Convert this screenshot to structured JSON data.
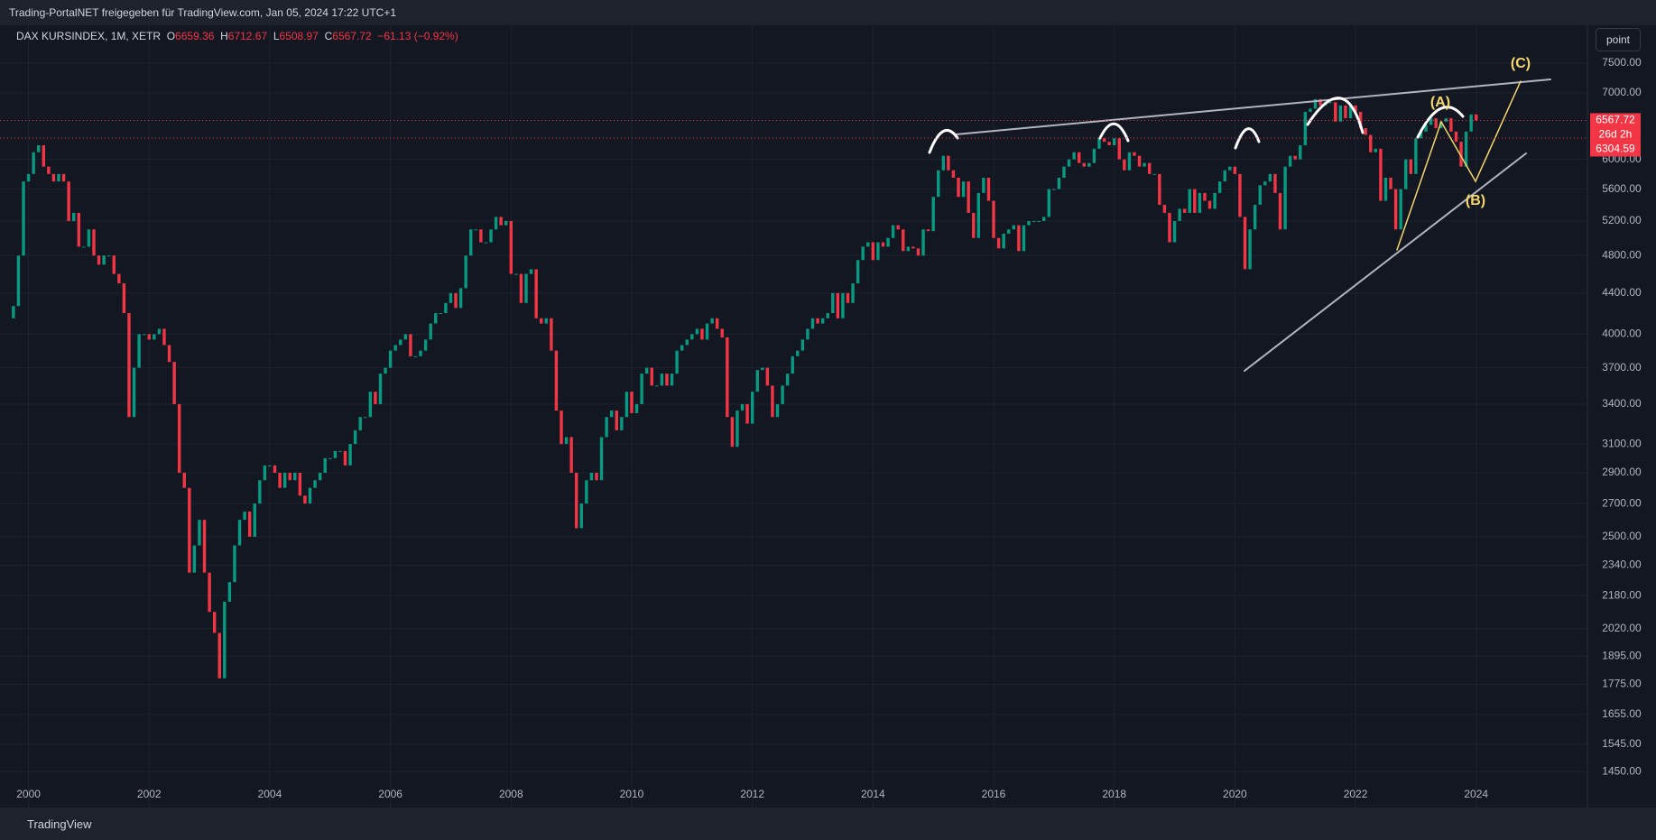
{
  "header": {
    "text": "Trading-PortalNET freigegeben für TradingView.com, Jan 05, 2024 17:22 UTC+1"
  },
  "toolbar": {
    "button": "point"
  },
  "footer": {
    "logo": "TradingView"
  },
  "legend": {
    "symbol": "DAX KURSINDEX, 1M, XETR",
    "open_label": "O",
    "open": "6659.36",
    "high_label": "H",
    "high": "6712.67",
    "low_label": "L",
    "low": "6508.97",
    "close_label": "C",
    "close": "6567.72",
    "change": "−61.13 (−0.92%)"
  },
  "chart_data": {
    "type": "candlestick",
    "log_scale": true,
    "grid": true,
    "colors": {
      "up": "#089981",
      "down": "#f23645",
      "annotation": "#f5d76e"
    },
    "last_price": 6567.72,
    "countdown": "26d 2h",
    "prev_level": 6304.59,
    "annotations": [
      "(A)",
      "(B)",
      "(C)"
    ],
    "ylim": [
      1331,
      8190
    ],
    "yticks": [
      {
        "value": 7500,
        "label": "7500.00"
      },
      {
        "value": 7000,
        "label": "7000.00"
      },
      {
        "value": 6000,
        "label": "6000.00"
      },
      {
        "value": 5600,
        "label": "5600.00"
      },
      {
        "value": 5200,
        "label": "5200.00"
      },
      {
        "value": 4800,
        "label": "4800.00"
      },
      {
        "value": 4400,
        "label": "4400.00"
      },
      {
        "value": 4000,
        "label": "4000.00"
      },
      {
        "value": 3700,
        "label": "3700.00"
      },
      {
        "value": 3400,
        "label": "3400.00"
      },
      {
        "value": 3100,
        "label": "3100.00"
      },
      {
        "value": 2900,
        "label": "2900.00"
      },
      {
        "value": 2700,
        "label": "2700.00"
      },
      {
        "value": 2500,
        "label": "2500.00"
      },
      {
        "value": 2340,
        "label": "2340.00"
      },
      {
        "value": 2180,
        "label": "2180.00"
      },
      {
        "value": 2020,
        "label": "2020.00"
      },
      {
        "value": 1895,
        "label": "1895.00"
      },
      {
        "value": 1775,
        "label": "1775.00"
      },
      {
        "value": 1655,
        "label": "1655.00"
      },
      {
        "value": 1545,
        "label": "1545.00"
      },
      {
        "value": 1450,
        "label": "1450.00"
      }
    ],
    "categories": [
      null,
      null,
      null,
      null,
      "2000",
      null,
      null,
      null,
      null,
      null,
      null,
      null,
      null,
      null,
      null,
      null,
      null,
      null,
      null,
      null,
      null,
      null,
      null,
      null,
      null,
      null,
      null,
      null,
      "2002",
      null,
      null,
      null,
      null,
      null,
      null,
      null,
      null,
      null,
      null,
      null,
      null,
      null,
      null,
      null,
      null,
      null,
      null,
      null,
      null,
      null,
      null,
      null,
      "2004",
      null,
      null,
      null,
      null,
      null,
      null,
      null,
      null,
      null,
      null,
      null,
      null,
      null,
      null,
      null,
      null,
      null,
      null,
      null,
      null,
      null,
      null,
      null,
      "2006",
      null,
      null,
      null,
      null,
      null,
      null,
      null,
      null,
      null,
      null,
      null,
      null,
      null,
      null,
      null,
      null,
      null,
      null,
      null,
      null,
      null,
      null,
      null,
      "2008",
      null,
      null,
      null,
      null,
      null,
      null,
      null,
      null,
      null,
      null,
      null,
      null,
      null,
      null,
      null,
      null,
      null,
      null,
      null,
      null,
      null,
      null,
      null,
      "2010",
      null,
      null,
      null,
      null,
      null,
      null,
      null,
      null,
      null,
      null,
      null,
      null,
      null,
      null,
      null,
      null,
      null,
      null,
      null,
      null,
      null,
      null,
      null,
      "2012",
      null,
      null,
      null,
      null,
      null,
      null,
      null,
      null,
      null,
      null,
      null,
      null,
      null,
      null,
      null,
      null,
      null,
      null,
      null,
      null,
      null,
      null,
      null,
      "2014",
      null,
      null,
      null,
      null,
      null,
      null,
      null,
      null,
      null,
      null,
      null,
      null,
      null,
      null,
      null,
      null,
      null,
      null,
      null,
      null,
      null,
      null,
      null,
      "2016",
      null,
      null,
      null,
      null,
      null,
      null,
      null,
      null,
      null,
      null,
      null,
      null,
      null,
      null,
      null,
      null,
      null,
      null,
      null,
      null,
      null,
      null,
      null,
      "2018",
      null,
      null,
      null,
      null,
      null,
      null,
      null,
      null,
      null,
      null,
      null,
      null,
      null,
      null,
      null,
      null,
      null,
      null,
      null,
      null,
      null,
      null,
      null,
      "2020",
      null,
      null,
      null,
      null,
      null,
      null,
      null,
      null,
      null,
      null,
      null,
      null,
      null,
      null,
      null,
      null,
      null,
      null,
      null,
      null,
      null,
      null,
      null,
      "2022",
      null,
      null,
      null,
      null,
      null,
      null,
      null,
      null,
      null,
      null,
      null,
      null,
      null,
      null,
      null,
      null,
      null,
      null,
      null,
      null,
      null,
      null,
      null,
      "2024"
    ],
    "values": [
      4150,
      4270,
      4800,
      5700,
      5800,
      6100,
      6200,
      5900,
      5800,
      5700,
      5800,
      5700,
      5200,
      5300,
      4900,
      4900,
      5100,
      4800,
      4700,
      4800,
      4800,
      4600,
      4500,
      4200,
      3300,
      3700,
      4000,
      4000,
      3950,
      4000,
      4050,
      3900,
      3750,
      3400,
      2900,
      2800,
      2300,
      2450,
      2600,
      2300,
      2100,
      2000,
      1800,
      2150,
      2250,
      2450,
      2600,
      2650,
      2500,
      2700,
      2850,
      2950,
      2950,
      2900,
      2800,
      2900,
      2850,
      2900,
      2750,
      2700,
      2800,
      2850,
      2900,
      3000,
      3000,
      3050,
      3050,
      2950,
      3100,
      3200,
      3300,
      3300,
      3500,
      3400,
      3650,
      3700,
      3850,
      3900,
      3950,
      4000,
      3800,
      3800,
      3850,
      3950,
      4100,
      4200,
      4200,
      4300,
      4400,
      4250,
      4450,
      4800,
      5100,
      5100,
      4950,
      4950,
      5100,
      5250,
      5150,
      5200,
      4600,
      4600,
      4300,
      4600,
      4650,
      4150,
      4100,
      4150,
      3850,
      3350,
      3100,
      3150,
      2900,
      2550,
      2700,
      2850,
      2900,
      2850,
      3150,
      3300,
      3350,
      3200,
      3300,
      3500,
      3330,
      3400,
      3650,
      3700,
      3550,
      3550,
      3650,
      3550,
      3650,
      3850,
      3900,
      3950,
      4000,
      4050,
      3950,
      4100,
      4150,
      4050,
      3970,
      3300,
      3080,
      3350,
      3400,
      3250,
      3500,
      3680,
      3700,
      3550,
      3300,
      3400,
      3550,
      3650,
      3800,
      3850,
      3950,
      4050,
      4150,
      4100,
      4150,
      4200,
      4400,
      4150,
      4400,
      4300,
      4500,
      4750,
      4900,
      4950,
      4750,
      4950,
      4900,
      5000,
      5150,
      5100,
      4850,
      4900,
      4880,
      4800,
      5100,
      5080,
      5500,
      5850,
      6050,
      5850,
      5750,
      5500,
      5700,
      5300,
      5000,
      5550,
      5750,
      5450,
      5000,
      4880,
      5050,
      5100,
      5150,
      4850,
      5150,
      5200,
      5200,
      5200,
      5250,
      5600,
      5600,
      5750,
      5900,
      6000,
      6100,
      5950,
      5900,
      5950,
      6150,
      6300,
      6250,
      6200,
      6300,
      6000,
      5850,
      6100,
      6050,
      5900,
      5950,
      5800,
      5800,
      5400,
      5300,
      4950,
      5200,
      5350,
      5300,
      5600,
      5300,
      5550,
      5450,
      5350,
      5550,
      5700,
      5850,
      5900,
      5800,
      5250,
      4650,
      5100,
      5400,
      5650,
      5700,
      5800,
      5550,
      5100,
      5900,
      6050,
      6000,
      6200,
      6700,
      6750,
      6900,
      6800,
      6850,
      6850,
      6550,
      6800,
      6600,
      6800,
      6700,
      6450,
      6350,
      6100,
      6150,
      5450,
      5750,
      5600,
      5100,
      5600,
      6000,
      5800,
      6300,
      6400,
      6500,
      6600,
      6450,
      6550,
      6600,
      6400,
      6250,
      5900,
      6400,
      6659.36,
      6567.72
    ]
  }
}
